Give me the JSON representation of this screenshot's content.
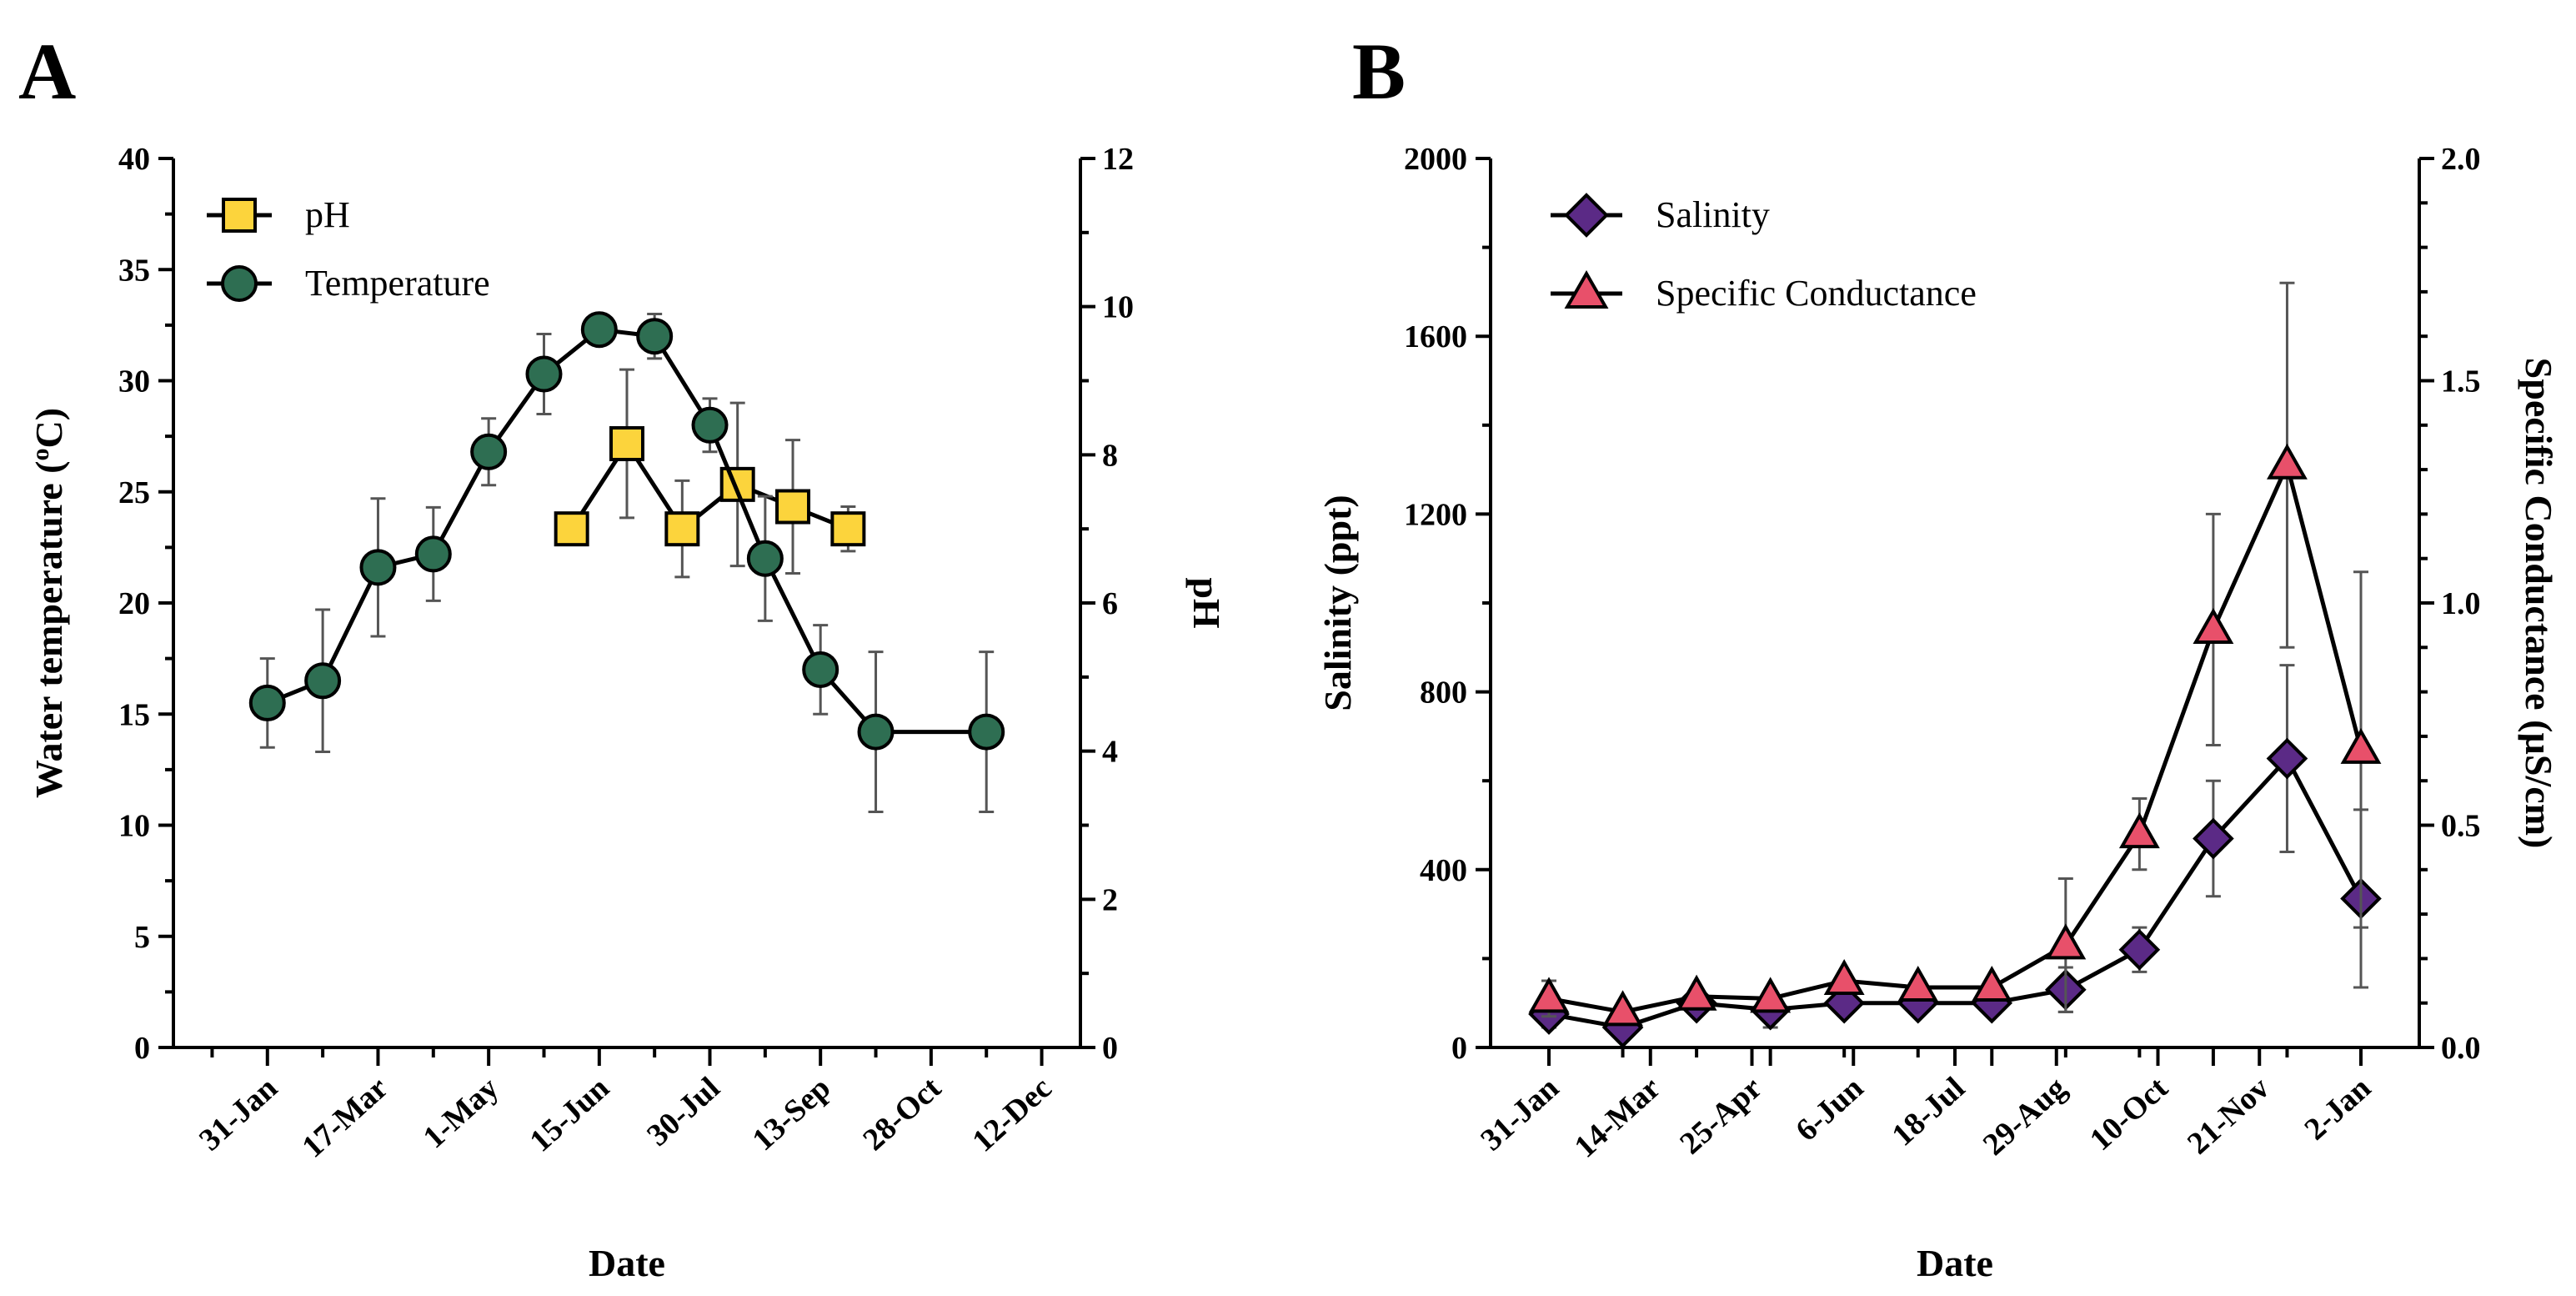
{
  "chart_data": [
    {
      "panel": "A",
      "type": "line",
      "xlabel": "Date",
      "ylabel": "Water temperature (oC)",
      "ylabel_main": "Water temperature (",
      "ylabel_sup": "o",
      "ylabel_end": "C)",
      "y2label": "pH",
      "categories": [
        "31-Jan",
        "17-Mar",
        "1-May",
        "15-Jun",
        "30-Jul",
        "13-Sep",
        "28-Oct",
        "12-Dec"
      ],
      "xlim": [
        0,
        15
      ],
      "ylim": [
        0,
        40
      ],
      "y2lim": [
        0,
        12
      ],
      "yticks": [
        "0",
        "5",
        "10",
        "15",
        "20",
        "25",
        "30",
        "35",
        "40"
      ],
      "y2ticks": [
        "0",
        "2",
        "4",
        "6",
        "8",
        "10",
        "12"
      ],
      "legend_position": "top-left",
      "series": [
        {
          "name": "pH",
          "axis": "right",
          "marker": "square",
          "color": "#fcd43c",
          "x": [
            6.5,
            7.5,
            8.5,
            9.5,
            10.5,
            11.5
          ],
          "values": [
            7.0,
            8.15,
            7.0,
            7.6,
            7.3,
            7.0
          ],
          "errors": [
            0.0,
            1.0,
            0.65,
            1.1,
            0.9,
            0.3
          ]
        },
        {
          "name": "Temperature",
          "axis": "left",
          "marker": "circle",
          "color": "#2e6e52",
          "x": [
            1,
            2,
            3,
            4,
            5,
            6,
            7,
            8,
            9,
            10,
            11,
            12,
            14
          ],
          "values": [
            15.5,
            16.5,
            21.6,
            22.2,
            26.8,
            30.3,
            32.3,
            32.0,
            28.0,
            22.0,
            17.0,
            14.2,
            14.2
          ],
          "errors": [
            2.0,
            3.2,
            3.1,
            2.1,
            1.5,
            1.8,
            0.0,
            1.0,
            1.2,
            2.8,
            2.0,
            3.6,
            3.6
          ]
        }
      ]
    },
    {
      "panel": "B",
      "type": "line",
      "xlabel": "Date",
      "ylabel": "Salinity (ppt)",
      "y2label": "Specific Conductance (µS/cm)",
      "categories": [
        "31-Jan",
        "14-Mar",
        "25-Apr",
        "6-Jun",
        "18-Jul",
        "29-Aug",
        "10-Oct",
        "21-Nov",
        "2-Jan"
      ],
      "xlim": [
        0,
        13
      ],
      "ylim": [
        0,
        2000
      ],
      "y2lim": [
        0,
        2.0
      ],
      "yticks": [
        "0",
        "400",
        "800",
        "1200",
        "1600",
        "2000"
      ],
      "y2ticks": [
        "0.0",
        "0.5",
        "1.0",
        "1.5",
        "2.0"
      ],
      "legend_position": "top-left",
      "series": [
        {
          "name": "Salinity",
          "axis": "left",
          "marker": "diamond",
          "color": "#5b2a86",
          "x": [
            0,
            1,
            2,
            3,
            4,
            5,
            6,
            7,
            8,
            9,
            10,
            11
          ],
          "values": [
            75,
            45,
            100,
            85,
            100,
            100,
            100,
            130,
            220,
            470,
            650,
            335
          ],
          "errors": [
            30,
            0,
            0,
            40,
            0,
            0,
            0,
            50,
            50,
            130,
            210,
            200
          ]
        },
        {
          "name": "Specific Conductance",
          "axis": "right",
          "marker": "triangle",
          "color": "#e8506a",
          "x": [
            0,
            1,
            2,
            3,
            4,
            5,
            6,
            7,
            8,
            9,
            10,
            11
          ],
          "values": [
            0.11,
            0.08,
            0.115,
            0.11,
            0.15,
            0.135,
            0.135,
            0.23,
            0.48,
            0.94,
            1.31,
            0.67
          ],
          "errors": [
            0.04,
            0.0,
            0.0,
            0.0,
            0.0,
            0.0,
            0.0,
            0.15,
            0.08,
            0.26,
            0.41,
            0.4
          ]
        }
      ]
    }
  ]
}
